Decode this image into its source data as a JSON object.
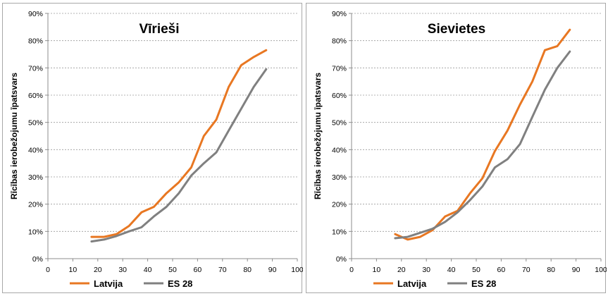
{
  "chart_data": [
    {
      "type": "line",
      "title": "Vīrieši",
      "xlabel": "",
      "ylabel": "Rīcības ierobežojumu īpatsvars",
      "xlim": [
        0,
        100
      ],
      "ylim": [
        0,
        0.9
      ],
      "xticks": [
        0,
        10,
        20,
        30,
        40,
        50,
        60,
        70,
        80,
        90,
        100
      ],
      "xtick_labels": [
        "0",
        "10",
        "20",
        "30",
        "40",
        "50",
        "60",
        "70",
        "80",
        "90",
        "100"
      ],
      "yticks": [
        0,
        0.1,
        0.2,
        0.3,
        0.4,
        0.5,
        0.6,
        0.7,
        0.8,
        0.9
      ],
      "ytick_labels": [
        "0%",
        "10%",
        "20%",
        "30%",
        "40%",
        "50%",
        "60%",
        "70%",
        "80%",
        "90%"
      ],
      "grid": "horizontal-dashed",
      "legend": "bottom",
      "series": [
        {
          "name": "Latvija",
          "color": "#E87722",
          "x": [
            17.5,
            22.5,
            27.5,
            32.5,
            37.5,
            42.5,
            47.5,
            52.5,
            57.5,
            62.5,
            67.5,
            72.5,
            77.5,
            82.5,
            87.5
          ],
          "y": [
            0.08,
            0.08,
            0.09,
            0.12,
            0.17,
            0.19,
            0.24,
            0.28,
            0.335,
            0.45,
            0.51,
            0.63,
            0.71,
            0.74,
            0.765
          ]
        },
        {
          "name": "ES 28",
          "color": "#808080",
          "x": [
            17.5,
            22.5,
            27.5,
            32.5,
            37.5,
            42.5,
            47.5,
            52.5,
            57.5,
            62.5,
            67.5,
            72.5,
            77.5,
            82.5,
            87.5
          ],
          "y": [
            0.063,
            0.07,
            0.083,
            0.1,
            0.115,
            0.155,
            0.19,
            0.24,
            0.305,
            0.35,
            0.39,
            0.47,
            0.55,
            0.63,
            0.695
          ]
        }
      ]
    },
    {
      "type": "line",
      "title": "Sievietes",
      "xlabel": "",
      "ylabel": "Rīcības ierobežojumu īpatsvars",
      "xlim": [
        0,
        100
      ],
      "ylim": [
        0,
        0.9
      ],
      "xticks": [
        0,
        10,
        20,
        30,
        40,
        50,
        60,
        70,
        80,
        90,
        100
      ],
      "xtick_labels": [
        "0",
        "10",
        "20",
        "30",
        "40",
        "50",
        "60",
        "70",
        "80",
        "90",
        "100"
      ],
      "yticks": [
        0,
        0.1,
        0.2,
        0.3,
        0.4,
        0.5,
        0.6,
        0.7,
        0.8,
        0.9
      ],
      "ytick_labels": [
        "0%",
        "10%",
        "20%",
        "30%",
        "40%",
        "50%",
        "60%",
        "70%",
        "80%",
        "90%"
      ],
      "grid": "horizontal-dashed",
      "legend": "bottom",
      "series": [
        {
          "name": "Latvija",
          "color": "#E87722",
          "x": [
            17.5,
            22.5,
            27.5,
            32.5,
            37.5,
            42.5,
            47.5,
            52.5,
            57.5,
            62.5,
            67.5,
            72.5,
            77.5,
            82.5,
            87.5
          ],
          "y": [
            0.09,
            0.07,
            0.08,
            0.105,
            0.155,
            0.175,
            0.24,
            0.295,
            0.395,
            0.47,
            0.565,
            0.65,
            0.765,
            0.78,
            0.84
          ]
        },
        {
          "name": "ES 28",
          "color": "#808080",
          "x": [
            17.5,
            22.5,
            27.5,
            32.5,
            37.5,
            42.5,
            47.5,
            52.5,
            57.5,
            62.5,
            67.5,
            72.5,
            77.5,
            82.5,
            87.5
          ],
          "y": [
            0.075,
            0.08,
            0.095,
            0.11,
            0.135,
            0.17,
            0.215,
            0.265,
            0.335,
            0.365,
            0.42,
            0.52,
            0.62,
            0.7,
            0.76
          ]
        }
      ]
    }
  ]
}
